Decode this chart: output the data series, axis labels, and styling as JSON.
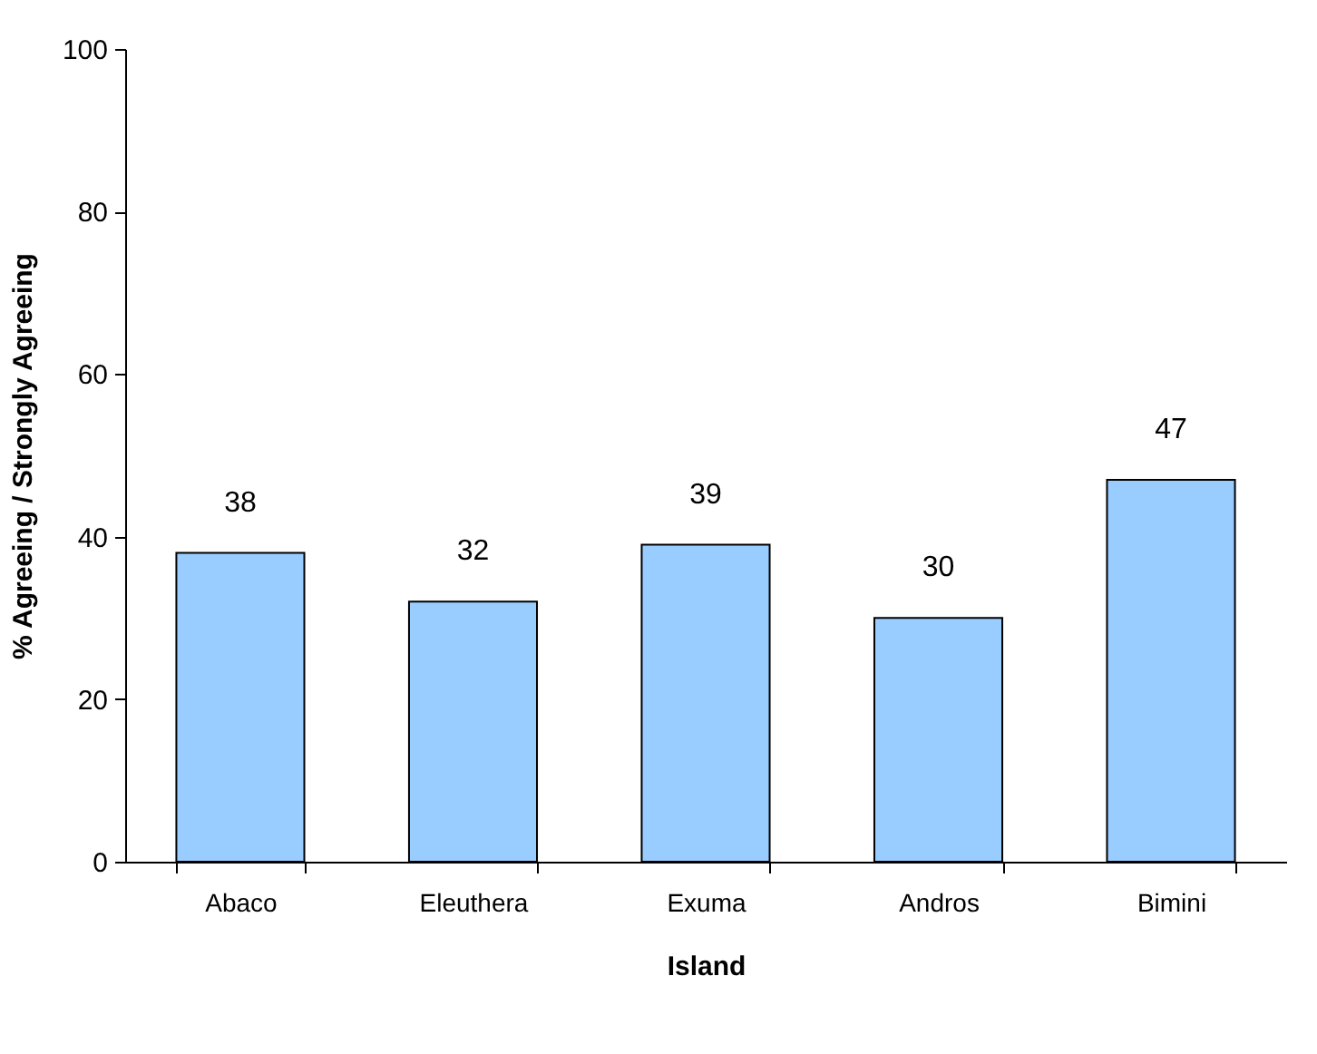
{
  "chart_data": {
    "type": "bar",
    "xlabel": "Island",
    "ylabel": "% Agreeing / Strongly Agreeing",
    "categories": [
      "Abaco",
      "Eleuthera",
      "Exuma",
      "Andros",
      "Bimini"
    ],
    "values": [
      38,
      32,
      39,
      30,
      47
    ],
    "color": "#99ccff",
    "ylim": [
      0,
      100
    ],
    "yticks": [
      0,
      20,
      40,
      60,
      80,
      100
    ],
    "data_labels": true,
    "grid": false
  }
}
